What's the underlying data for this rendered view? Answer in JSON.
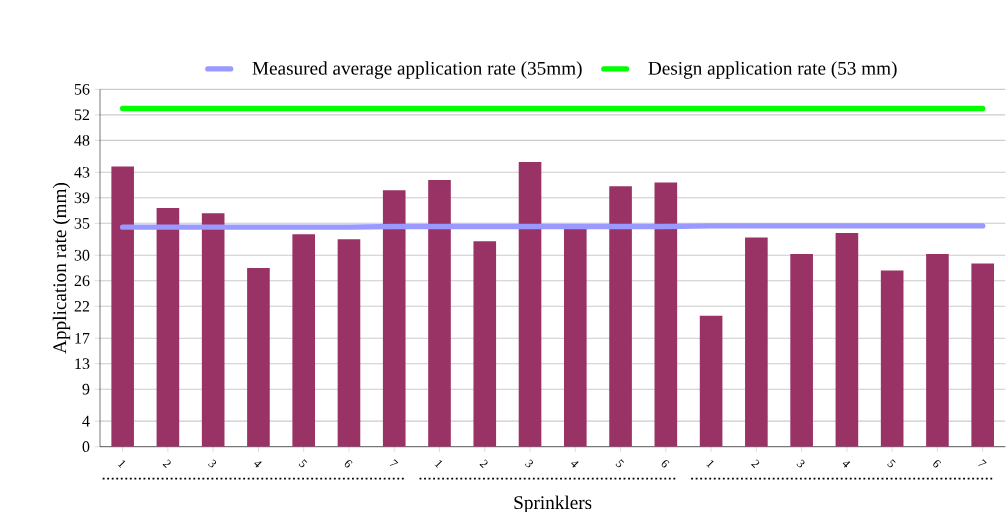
{
  "chart_data": {
    "type": "bar",
    "xlabel": "Sprinklers",
    "ylabel": "Application rate (mm)",
    "categories": [
      "1",
      "2",
      "3",
      "4",
      "5",
      "6",
      "7",
      "1",
      "2",
      "3",
      "4",
      "5",
      "6",
      "1",
      "2",
      "3",
      "4",
      "5",
      "6",
      "7"
    ],
    "series": [
      {
        "color": "#993366",
        "values": [
          43.9,
          37.4,
          36.6,
          28.0,
          33.3,
          32.5,
          40.2,
          41.8,
          32.2,
          44.6,
          34.3,
          40.8,
          41.4,
          20.5,
          32.8,
          30.2,
          33.5,
          27.6,
          30.2,
          28.7
        ]
      },
      {
        "type": "line",
        "name": "Measured average application rate (35mm)",
        "color": "#9999ff",
        "values": [
          34.4,
          34.4,
          34.4,
          34.4,
          34.4,
          34.4,
          34.5,
          34.5,
          34.5,
          34.5,
          34.5,
          34.5,
          34.5,
          34.6,
          34.6,
          34.6,
          34.6,
          34.6,
          34.6,
          34.6
        ]
      },
      {
        "type": "line",
        "name": "Design application rate (53 mm)",
        "color": "#00ff00",
        "values": [
          53,
          53,
          53,
          53,
          53,
          53,
          53,
          53,
          53,
          53,
          53,
          53,
          53,
          53,
          53,
          53,
          53,
          53,
          53,
          53
        ]
      }
    ],
    "ylim": [
      0,
      56
    ],
    "yticks": [
      0,
      4,
      9,
      13,
      17,
      22,
      26,
      30,
      35,
      39,
      43,
      48,
      52,
      56
    ],
    "grid": "y",
    "legend": "top"
  }
}
